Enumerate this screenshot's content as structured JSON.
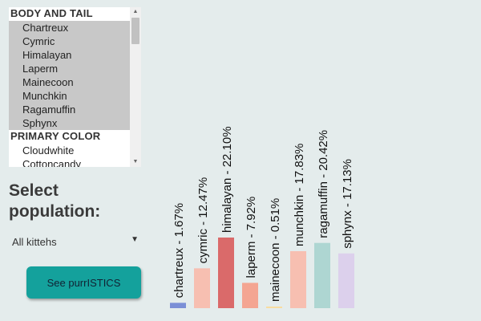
{
  "listbox": {
    "groups": [
      {
        "label": "BODY AND TAIL",
        "options": [
          {
            "label": "Chartreux",
            "selected": true
          },
          {
            "label": "Cymric",
            "selected": true
          },
          {
            "label": "Himalayan",
            "selected": true
          },
          {
            "label": "Laperm",
            "selected": true
          },
          {
            "label": "Mainecoon",
            "selected": true
          },
          {
            "label": "Munchkin",
            "selected": true
          },
          {
            "label": "Ragamuffin",
            "selected": true
          },
          {
            "label": "Sphynx",
            "selected": true
          }
        ]
      },
      {
        "label": "PRIMARY COLOR",
        "options": [
          {
            "label": "Cloudwhite",
            "selected": false
          },
          {
            "label": "Cottoncandy",
            "selected": false
          }
        ]
      }
    ]
  },
  "population": {
    "heading": "Select population:",
    "selected": "All kittehs"
  },
  "button_label": "See purrISTICS",
  "chart_data": {
    "type": "bar",
    "categories": [
      "chartreux",
      "cymric",
      "himalayan",
      "laperm",
      "mainecoon",
      "munchkin",
      "ragamuffin",
      "sphynx"
    ],
    "values": [
      1.67,
      12.47,
      22.1,
      7.92,
      0.51,
      17.83,
      20.42,
      17.13
    ],
    "labels": [
      "chartreux - 1.67%",
      "cymric - 12.47%",
      "himalayan - 22.10%",
      "laperm - 7.92%",
      "mainecoon - 0.51%",
      "munchkin - 17.83%",
      "ragamuffin - 20.42%",
      "sphynx - 17.13%"
    ],
    "colors": [
      "#7b8fd6",
      "#f7bfb1",
      "#da6a6a",
      "#f4a592",
      "#f8dca0",
      "#f7bfb1",
      "#aed6d2",
      "#dcd0ec"
    ],
    "title": "",
    "xlabel": "",
    "ylabel": ""
  }
}
